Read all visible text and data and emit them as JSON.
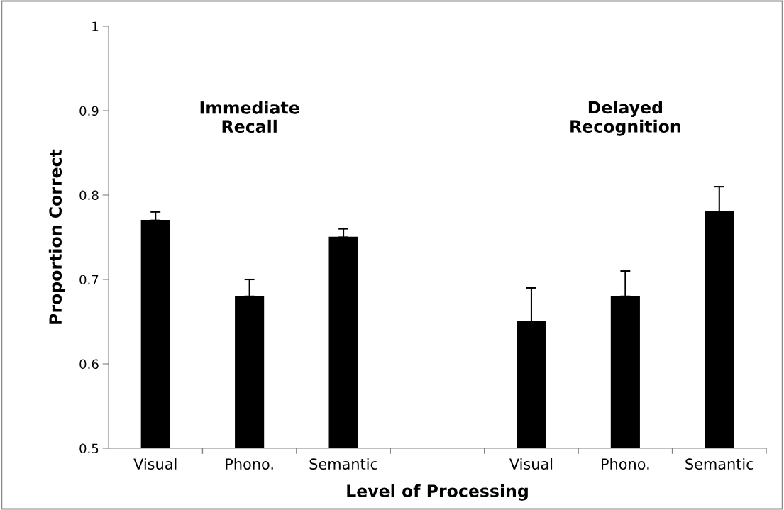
{
  "chart_data": {
    "type": "bar",
    "xlabel": "Level of Processing",
    "ylabel": "Proportion Correct",
    "categories": [
      "Visual",
      "Phono.",
      "Semantic",
      null,
      "Visual",
      "Phono.",
      "Semantic"
    ],
    "values": [
      0.77,
      0.68,
      0.75,
      null,
      0.65,
      0.68,
      0.78
    ],
    "errors": [
      [
        0.77,
        0.78
      ],
      [
        0.68,
        0.7
      ],
      [
        0.75,
        0.76
      ],
      null,
      [
        0.65,
        0.69
      ],
      [
        0.68,
        0.71
      ],
      [
        0.78,
        0.81
      ]
    ],
    "color": "#000000",
    "ylim": [
      0.5,
      1
    ],
    "yticks": [
      0.5,
      0.6,
      0.7,
      0.8,
      0.9,
      1
    ],
    "annotations": [
      "Immediate\nRecall",
      "Delayed\nRecognition"
    ],
    "grid": false,
    "legend": false
  }
}
